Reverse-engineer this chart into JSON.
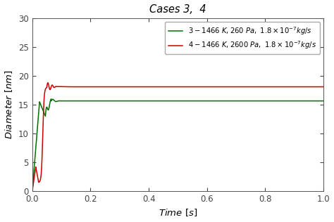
{
  "title": "Cases 3,  4",
  "xlabel": "$Time\\ [s]$",
  "ylabel": "$Diameter\\ [nm]$",
  "xlim": [
    0.0,
    1.0
  ],
  "ylim": [
    0,
    30
  ],
  "yticks": [
    0,
    5,
    10,
    15,
    20,
    25,
    30
  ],
  "xticks": [
    0.0,
    0.2,
    0.4,
    0.6,
    0.8,
    1.0
  ],
  "legend_case3": "$3 - 1466\\ K, 260\\ Pa,\\ 1.8 \\times 10^{-7}kg/s$",
  "legend_case4": "$4 - 1466\\ K, 2600\\ Pa,\\ 1.8 \\times 10^{-7}kg/s$",
  "color_case3": "#007000",
  "color_case4": "#cc0000",
  "steady_case3": 15.65,
  "steady_case4": 18.1,
  "background": "#ffffff"
}
